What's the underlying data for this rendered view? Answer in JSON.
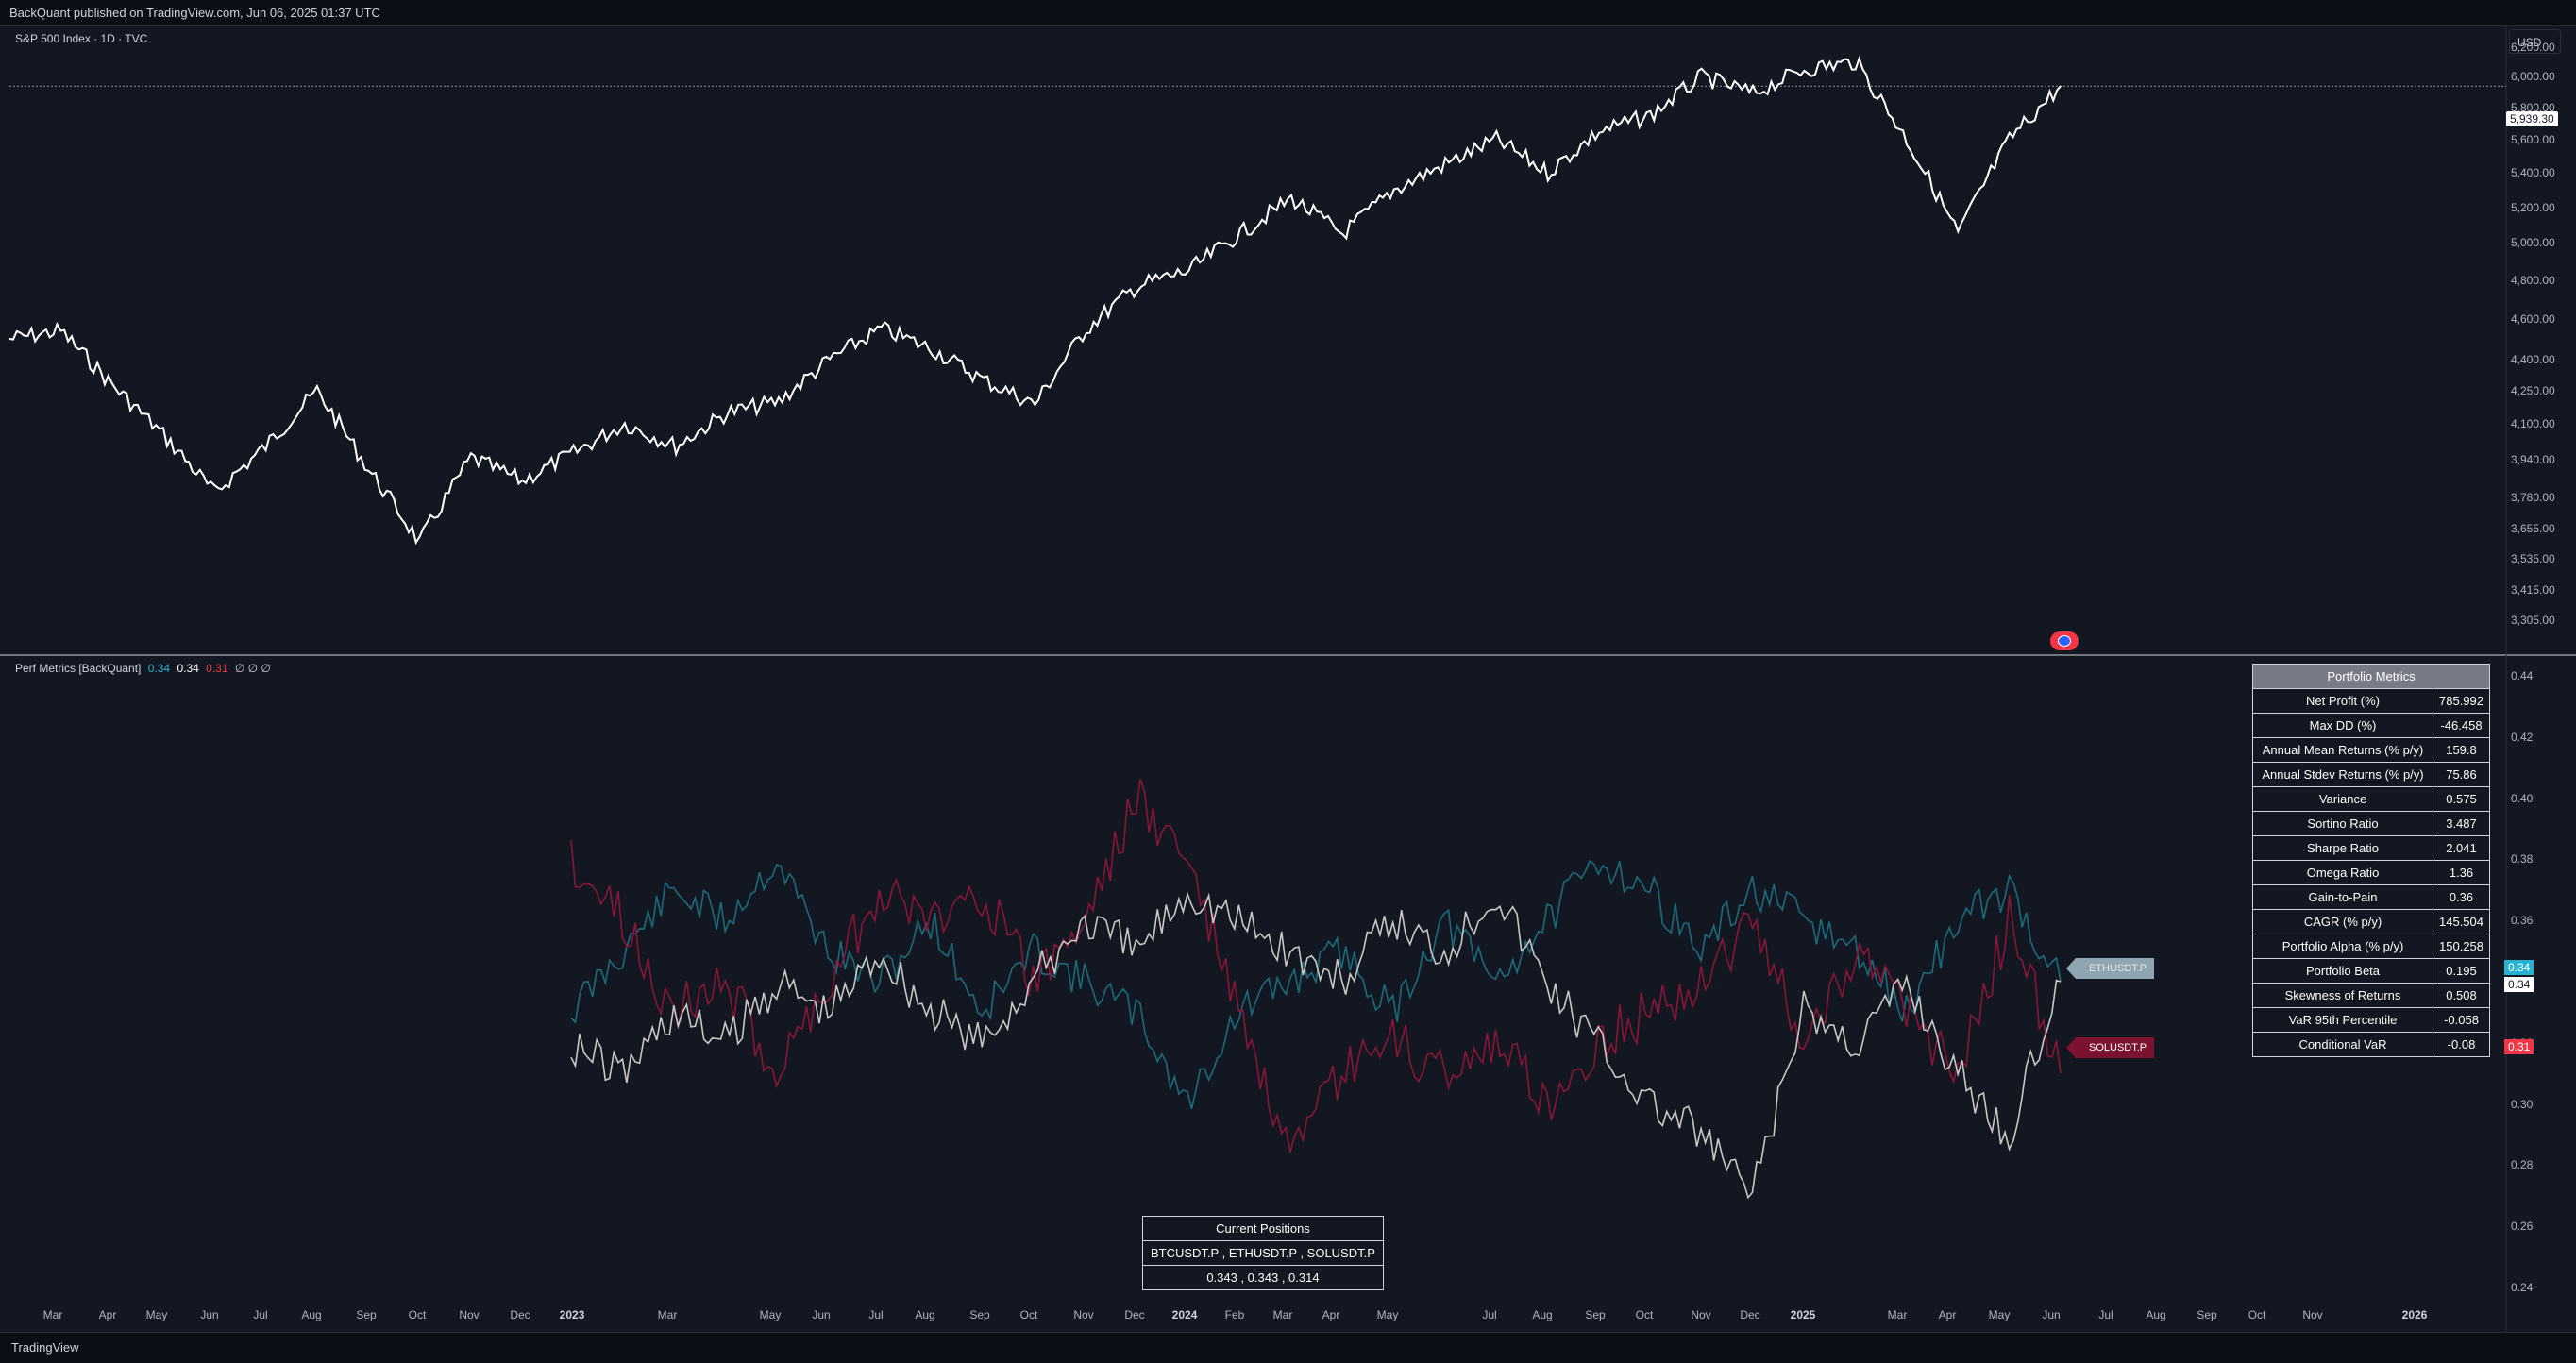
{
  "header": {
    "publish_line": "BackQuant published on TradingView.com, Jun 06, 2025 01:37 UTC"
  },
  "footer": {
    "brand": "TradingView"
  },
  "colors": {
    "background": "#131722",
    "price": "#ffffff",
    "btc": "#c8c8c8",
    "eth": "#1b6b7c",
    "sol": "#8a1538",
    "eth_tag": "#26b3d1",
    "sol_tag": "#f23645"
  },
  "price_pane": {
    "title": "S&P 500 Index · 1D · TVC",
    "currency_button": "USD",
    "last_price_label": "5,939.30",
    "y_ticks": [
      "6,200.00",
      "6,000.00",
      "5,800.00",
      "5,600.00",
      "5,400.00",
      "5,200.00",
      "5,000.00",
      "4,800.00",
      "4,600.00",
      "4,400.00",
      "4,250.00",
      "4,100.00",
      "3,940.00",
      "3,780.00",
      "3,655.00",
      "3,535.00",
      "3,415.00",
      "3,305.00"
    ]
  },
  "indicator_pane": {
    "title": "Perf Metrics [BackQuant]",
    "values": [
      "0.34",
      "0.34",
      "0.31",
      "∅ ∅ ∅"
    ],
    "y_ticks": [
      "0.44",
      "0.42",
      "0.40",
      "0.38",
      "0.36",
      "0.34",
      "0.32",
      "0.30",
      "0.28",
      "0.26",
      "0.24"
    ],
    "value_tags": {
      "eth": "0.34",
      "btc": "0.34",
      "sol": "0.31"
    },
    "legend": {
      "eth": "ETHUSDT.P",
      "sol": "SOLUSDT.P"
    }
  },
  "x_axis": {
    "labels": [
      "Mar",
      "Apr",
      "May",
      "Jun",
      "Jul",
      "Aug",
      "Sep",
      "Oct",
      "Nov",
      "Dec",
      "2023",
      "Mar",
      "May",
      "Jun",
      "Jul",
      "Aug",
      "Sep",
      "Oct",
      "Nov",
      "Dec",
      "2024",
      "Feb",
      "Mar",
      "Apr",
      "May",
      "Jul",
      "Aug",
      "Sep",
      "Oct",
      "Nov",
      "Dec",
      "2025",
      "Mar",
      "Apr",
      "May",
      "Jun",
      "Jul",
      "Aug",
      "Sep",
      "Oct",
      "Nov",
      "2026"
    ]
  },
  "portfolio_metrics": {
    "title": "Portfolio Metrics",
    "rows": [
      {
        "label": "Net Profit (%)",
        "value": "785.992"
      },
      {
        "label": "Max DD (%)",
        "value": "-46.458"
      },
      {
        "label": "Annual Mean Returns (% p/y)",
        "value": "159.8"
      },
      {
        "label": "Annual Stdev Returns (% p/y)",
        "value": "75.86"
      },
      {
        "label": "Variance",
        "value": "0.575"
      },
      {
        "label": "Sortino Ratio",
        "value": "3.487"
      },
      {
        "label": "Sharpe Ratio",
        "value": "2.041"
      },
      {
        "label": "Omega Ratio",
        "value": "1.36"
      },
      {
        "label": "Gain-to-Pain",
        "value": "0.36"
      },
      {
        "label": "CAGR (% p/y)",
        "value": "145.504"
      },
      {
        "label": "Portfolio Alpha (% p/y)",
        "value": "150.258"
      },
      {
        "label": "Portfolio Beta",
        "value": "0.195"
      },
      {
        "label": "Skewness of Returns",
        "value": "0.508"
      },
      {
        "label": "VaR 95th Percentile",
        "value": "-0.058"
      },
      {
        "label": "Conditional VaR",
        "value": "-0.08"
      }
    ]
  },
  "current_positions": {
    "title": "Current Positions",
    "symbols": "BTCUSDT.P , ETHUSDT.P , SOLUSDT.P",
    "weights": "0.343 , 0.343 , 0.314"
  },
  "chart_data": [
    {
      "type": "line",
      "title": "S&P 500 Index · 1D · TVC",
      "xlabel": "",
      "ylabel": "",
      "x": [
        "2022-02",
        "2022-03",
        "2022-04",
        "2022-05",
        "2022-06",
        "2022-07",
        "2022-08",
        "2022-09",
        "2022-10",
        "2022-11",
        "2022-12",
        "2023-01",
        "2023-02",
        "2023-03",
        "2023-04",
        "2023-05",
        "2023-06",
        "2023-07",
        "2023-08",
        "2023-09",
        "2023-10",
        "2023-11",
        "2023-12",
        "2024-01",
        "2024-02",
        "2024-03",
        "2024-04",
        "2024-05",
        "2024-06",
        "2024-07",
        "2024-08",
        "2024-09",
        "2024-10",
        "2024-11",
        "2024-12",
        "2025-01",
        "2025-02",
        "2025-03",
        "2025-04",
        "2025-05",
        "2025-06"
      ],
      "series": [
        {
          "name": "SPX",
          "values": [
            4500,
            4540,
            4280,
            4050,
            3800,
            4000,
            4250,
            3900,
            3600,
            3950,
            3850,
            3970,
            4100,
            4000,
            4150,
            4200,
            4400,
            4550,
            4450,
            4300,
            4190,
            4550,
            4770,
            4850,
            5050,
            5250,
            5050,
            5300,
            5450,
            5600,
            5400,
            5650,
            5750,
            6000,
            5890,
            6050,
            6100,
            5600,
            5050,
            5600,
            5939.3
          ]
        }
      ],
      "ylim": [
        3305,
        6250
      ],
      "last_value": 5939.3
    },
    {
      "type": "line",
      "title": "Perf Metrics [BackQuant]",
      "xlabel": "",
      "ylabel": "",
      "x": [
        "2023-01",
        "2023-02",
        "2023-03",
        "2023-04",
        "2023-05",
        "2023-06",
        "2023-07",
        "2023-08",
        "2023-09",
        "2023-10",
        "2023-11",
        "2023-12",
        "2024-01",
        "2024-02",
        "2024-03",
        "2024-04",
        "2024-05",
        "2024-06",
        "2024-07",
        "2024-08",
        "2024-09",
        "2024-10",
        "2024-11",
        "2024-12",
        "2025-01",
        "2025-02",
        "2025-03",
        "2025-04",
        "2025-05",
        "2025-06"
      ],
      "series": [
        {
          "name": "BTCUSDT.P",
          "values": [
            0.32,
            0.31,
            0.33,
            0.32,
            0.34,
            0.33,
            0.35,
            0.33,
            0.32,
            0.34,
            0.36,
            0.35,
            0.37,
            0.36,
            0.35,
            0.34,
            0.36,
            0.35,
            0.37,
            0.34,
            0.32,
            0.3,
            0.29,
            0.27,
            0.33,
            0.32,
            0.34,
            0.31,
            0.29,
            0.34
          ]
        },
        {
          "name": "ETHUSDT.P",
          "values": [
            0.33,
            0.35,
            0.37,
            0.36,
            0.38,
            0.35,
            0.34,
            0.36,
            0.33,
            0.35,
            0.34,
            0.33,
            0.3,
            0.33,
            0.34,
            0.35,
            0.33,
            0.36,
            0.34,
            0.36,
            0.38,
            0.37,
            0.35,
            0.37,
            0.36,
            0.35,
            0.33,
            0.36,
            0.37,
            0.34
          ]
        },
        {
          "name": "SOLUSDT.P",
          "values": [
            0.38,
            0.36,
            0.33,
            0.34,
            0.31,
            0.34,
            0.37,
            0.36,
            0.37,
            0.34,
            0.36,
            0.4,
            0.38,
            0.33,
            0.28,
            0.31,
            0.32,
            0.31,
            0.32,
            0.3,
            0.32,
            0.33,
            0.34,
            0.36,
            0.32,
            0.35,
            0.33,
            0.31,
            0.36,
            0.31
          ]
        }
      ],
      "ylim": [
        0.235,
        0.445
      ]
    }
  ]
}
